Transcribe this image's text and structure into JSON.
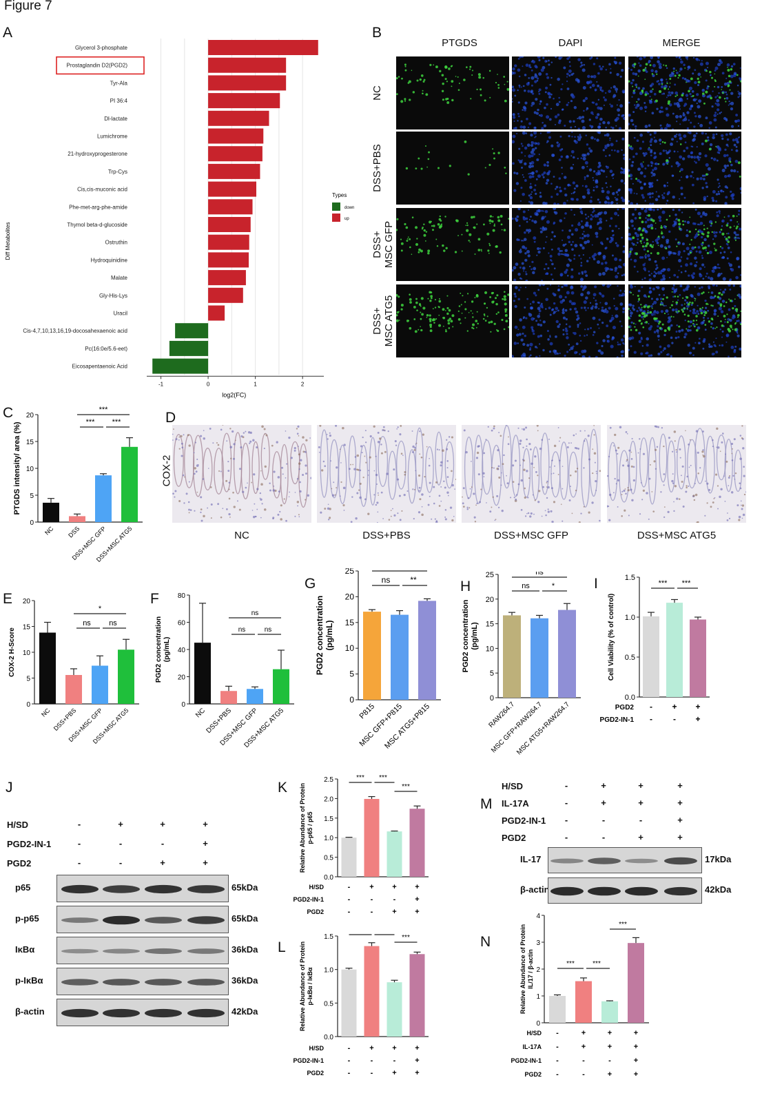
{
  "figure_title": "Figure 7",
  "panel_letters": [
    "A",
    "B",
    "C",
    "D",
    "E",
    "F",
    "G",
    "H",
    "I",
    "J",
    "K",
    "L",
    "M",
    "N"
  ],
  "colors": {
    "down": "#1e6b1e",
    "up": "#c8232c",
    "black": "#0c0c0c",
    "pink": "#f08080",
    "blue": "#4ea4f5",
    "green": "#1fbf3b",
    "orange": "#f5a53a",
    "blue2": "#5b9ef0",
    "lavender": "#8f8fd6",
    "khaki": "#bdb07a",
    "grey": "#d9d9d9",
    "mint": "#b8ecd8",
    "mauve": "#c07aa0"
  },
  "panelA": {
    "ylabel": "Diff Metabolites",
    "xlabel": "log2(FC)",
    "legend_title": "Types",
    "legend_items": [
      "down",
      "up"
    ],
    "highlighted": "Prostaglandin D2(PGD2)"
  },
  "panelB": {
    "columns": [
      "PTGDS",
      "DAPI",
      "MERGE"
    ],
    "rows": [
      "NC",
      "DSS+PBS",
      "DSS+\nMSC GFP",
      "DSS+\nMSC ATG5"
    ]
  },
  "panelD": {
    "stain": "COX-2",
    "labels": [
      "NC",
      "DSS+PBS",
      "DSS+MSC GFP",
      "DSS+MSC ATG5"
    ]
  },
  "panelJ": {
    "treatments": [
      {
        "name": "H/SD",
        "signs": [
          "-",
          "+",
          "+",
          "+"
        ]
      },
      {
        "name": "PGD2-IN-1",
        "signs": [
          "-",
          "-",
          "-",
          "+"
        ]
      },
      {
        "name": "PGD2",
        "signs": [
          "-",
          "-",
          "+",
          "+"
        ]
      }
    ],
    "bands": [
      {
        "name": "p65",
        "kda": "65kDa"
      },
      {
        "name": "p-p65",
        "kda": "65kDa"
      },
      {
        "name": "IκBα",
        "kda": "36kDa"
      },
      {
        "name": "p-IκBα",
        "kda": "36kDa"
      },
      {
        "name": "β-actin",
        "kda": "42kDa"
      }
    ]
  },
  "panelM": {
    "treatments": [
      {
        "name": "H/SD",
        "signs": [
          "-",
          "+",
          "+",
          "+"
        ]
      },
      {
        "name": "IL-17A",
        "signs": [
          "-",
          "+",
          "+",
          "+"
        ]
      },
      {
        "name": "PGD2-IN-1",
        "signs": [
          "-",
          "-",
          "-",
          "+"
        ]
      },
      {
        "name": "PGD2",
        "signs": [
          "-",
          "-",
          "+",
          "+"
        ]
      }
    ],
    "bands": [
      {
        "name": "IL-17",
        "kda": "17kDa"
      },
      {
        "name": "β-actin",
        "kda": "42kDa"
      }
    ]
  },
  "chart_data": [
    {
      "id": "A",
      "type": "bar",
      "orientation": "horizontal",
      "categories": [
        "Glycerol 3-phosphate",
        "Prostaglandin D2(PGD2)",
        "Tyr-Ala",
        "PI 36:4",
        "Dl-lactate",
        "Lumichrome",
        "21-hydroxyprogesterone",
        "Trp-Cys",
        "Cis,cis-muconic acid",
        "Phe-met-arg-phe-amide",
        "Thymol beta-d-glucoside",
        "Ostruthin",
        "Hydroquinidine",
        "Malate",
        "Gly-His-Lys",
        "Uracil",
        "Cis-4,7,10,13,16,19-docosahexaenoic acid",
        "Pc(16:0e/5.6-eet)",
        "Eicosapentaenoic Acid"
      ],
      "values": [
        2.33,
        1.65,
        1.65,
        1.52,
        1.29,
        1.17,
        1.15,
        1.1,
        1.02,
        0.94,
        0.9,
        0.87,
        0.86,
        0.8,
        0.74,
        0.35,
        -0.7,
        -0.82,
        -1.18
      ],
      "types": [
        "up",
        "up",
        "up",
        "up",
        "up",
        "up",
        "up",
        "up",
        "up",
        "up",
        "up",
        "up",
        "up",
        "up",
        "up",
        "up",
        "down",
        "down",
        "down"
      ],
      "xticks": [
        "-1",
        "0",
        "1",
        "2"
      ],
      "xlim": [
        -1.3,
        2.45
      ],
      "xlabel": "log2(FC)"
    },
    {
      "id": "C",
      "type": "bar",
      "categories": [
        "NC",
        "DSS",
        "DSS+MSC GFP",
        "DSS+MSC ATG5"
      ],
      "values": [
        3.6,
        1.1,
        8.7,
        14
      ],
      "errors": [
        0.8,
        0.4,
        0.3,
        1.7
      ],
      "ylabel": "PTGDS intensity/ area (%)",
      "ylim": [
        0,
        20
      ],
      "yticks": [
        "0",
        "5",
        "10",
        "15",
        "20"
      ],
      "brackets": [
        {
          "from": 1,
          "to": 3,
          "text": "***",
          "level": 0
        },
        {
          "from": 1,
          "to": 2,
          "text": "***",
          "level": 1
        },
        {
          "from": 2,
          "to": 3,
          "text": "***",
          "level": 1
        }
      ]
    },
    {
      "id": "E",
      "type": "bar",
      "categories": [
        "NC",
        "DSS+PBS",
        "DSS+MSC GFP",
        "DSS+MSC ATG5"
      ],
      "values": [
        13.8,
        5.6,
        7.4,
        10.5
      ],
      "errors": [
        2,
        1.2,
        1.9,
        2
      ],
      "ylabel": "COX-2 H-Score",
      "ylim": [
        0,
        20
      ],
      "yticks": [
        "0",
        "5",
        "10",
        "15",
        "20"
      ],
      "brackets": [
        {
          "from": 1,
          "to": 3,
          "text": "*",
          "level": 0
        },
        {
          "from": 1,
          "to": 2,
          "text": "ns",
          "level": 1
        },
        {
          "from": 2,
          "to": 3,
          "text": "ns",
          "level": 1
        }
      ]
    },
    {
      "id": "F",
      "type": "bar",
      "categories": [
        "NC",
        "DSS+PBS",
        "DSS+MSC GFP",
        "DSS+MSC ATG5"
      ],
      "values": [
        45,
        9.5,
        11,
        25.5
      ],
      "errors": [
        29,
        3.5,
        1.5,
        14
      ],
      "ylabel": "PGD2 concentration (pg/mL)",
      "ylim": [
        0,
        80
      ],
      "yticks": [
        "0",
        "20",
        "40",
        "60",
        "80"
      ],
      "brackets": [
        {
          "from": 1,
          "to": 3,
          "text": "ns",
          "level": 0
        },
        {
          "from": 1,
          "to": 2,
          "text": "ns",
          "level": 1
        },
        {
          "from": 2,
          "to": 3,
          "text": "ns",
          "level": 1
        }
      ]
    },
    {
      "id": "G",
      "type": "bar",
      "categories": [
        "P815",
        "MSC GFP+P815",
        "MSC ATG5+P815"
      ],
      "values": [
        17.1,
        16.5,
        19.2
      ],
      "errors": [
        0.4,
        0.8,
        0.4
      ],
      "ylabel": "PGD2 concentration (pg/mL)",
      "ylim": [
        0,
        25
      ],
      "yticks": [
        "0",
        "5",
        "10",
        "15",
        "20",
        "25"
      ],
      "brackets": [
        {
          "from": 0,
          "to": 2,
          "text": "**",
          "level": 0
        },
        {
          "from": 0,
          "to": 1,
          "text": "ns",
          "level": 1
        },
        {
          "from": 1,
          "to": 2,
          "text": "**",
          "level": 1
        }
      ]
    },
    {
      "id": "H",
      "type": "bar",
      "categories": [
        "RAW264.7",
        "MSC GFP+RAW264.7",
        "MSC ATG5+RAW264.7"
      ],
      "values": [
        16.7,
        16.1,
        17.8
      ],
      "errors": [
        0.6,
        0.6,
        1.3
      ],
      "ylabel": "PGD2 concentration (pg/mL)",
      "ylim": [
        0,
        25
      ],
      "yticks": [
        "0",
        "5",
        "10",
        "15",
        "20",
        "25"
      ],
      "brackets": [
        {
          "from": 0,
          "to": 2,
          "text": "ns",
          "level": 0
        },
        {
          "from": 0,
          "to": 1,
          "text": "ns",
          "level": 1
        },
        {
          "from": 1,
          "to": 2,
          "text": "*",
          "level": 1
        }
      ]
    },
    {
      "id": "I",
      "type": "bar",
      "categories": [
        "1",
        "2",
        "3"
      ],
      "values": [
        1.01,
        1.18,
        0.97
      ],
      "errors": [
        0.05,
        0.04,
        0.03
      ],
      "ylabel": "Cell Viability (% of control)",
      "ylim": [
        0,
        1.5
      ],
      "yticks": [
        "0.0",
        "0.5",
        "1.0",
        "1.5"
      ],
      "brackets": [
        {
          "from": 0,
          "to": 1,
          "text": "***",
          "level": 1
        },
        {
          "from": 1,
          "to": 2,
          "text": "***",
          "level": 1
        }
      ],
      "conditions": [
        {
          "name": "PGD2",
          "signs": [
            "-",
            "+",
            "+"
          ]
        },
        {
          "name": "PGD2-IN-1",
          "signs": [
            "-",
            "-",
            "+"
          ]
        }
      ]
    },
    {
      "id": "K",
      "type": "bar",
      "categories": [
        "1",
        "2",
        "3",
        "4"
      ],
      "values": [
        1.0,
        1.99,
        1.16,
        1.74
      ],
      "errors": [
        0.01,
        0.06,
        0.01,
        0.07
      ],
      "ylabel": "Relative Abundance of Protein p-p65 / p65",
      "ylim": [
        0,
        2.5
      ],
      "yticks": [
        "0.0",
        "0.5",
        "1.0",
        "1.5",
        "2.0",
        "2.5"
      ],
      "brackets": [
        {
          "from": 0,
          "to": 1,
          "text": "***",
          "level": 1
        },
        {
          "from": 1,
          "to": 2,
          "text": "***",
          "level": 1
        },
        {
          "from": 2,
          "to": 3,
          "text": "***",
          "level": 2
        }
      ],
      "conditions": [
        {
          "name": "H/SD",
          "signs": [
            "-",
            "+",
            "+",
            "+"
          ]
        },
        {
          "name": "PGD2-IN-1",
          "signs": [
            "-",
            "-",
            "-",
            "+"
          ]
        },
        {
          "name": "PGD2",
          "signs": [
            "-",
            "-",
            "+",
            "+"
          ]
        }
      ]
    },
    {
      "id": "L",
      "type": "bar",
      "categories": [
        "1",
        "2",
        "3",
        "4"
      ],
      "values": [
        1.0,
        1.35,
        0.81,
        1.23
      ],
      "errors": [
        0.02,
        0.05,
        0.03,
        0.03
      ],
      "ylabel": "Relative Abundance of Protein p-IκBα / IκBα",
      "ylim": [
        0,
        1.5
      ],
      "yticks": [
        "0.0",
        "0.5",
        "1.0",
        "1.5"
      ],
      "brackets": [
        {
          "from": 0,
          "to": 1,
          "text": "***",
          "level": 1
        },
        {
          "from": 1,
          "to": 2,
          "text": "***",
          "level": 1
        },
        {
          "from": 2,
          "to": 3,
          "text": "***",
          "level": 2
        }
      ],
      "conditions": [
        {
          "name": "H/SD",
          "signs": [
            "-",
            "+",
            "+",
            "+"
          ]
        },
        {
          "name": "PGD2-IN-1",
          "signs": [
            "-",
            "-",
            "-",
            "+"
          ]
        },
        {
          "name": "PGD2",
          "signs": [
            "-",
            "-",
            "+",
            "+"
          ]
        }
      ]
    },
    {
      "id": "N",
      "type": "bar",
      "categories": [
        "1",
        "2",
        "3",
        "4"
      ],
      "values": [
        1.0,
        1.55,
        0.8,
        2.97
      ],
      "errors": [
        0.04,
        0.12,
        0.02,
        0.2
      ],
      "ylabel": "Relative Abundance of Protein IL/17 / β-actin",
      "ylim": [
        0,
        4
      ],
      "yticks": [
        "0",
        "1",
        "2",
        "3",
        "4"
      ],
      "brackets": [
        {
          "from": 0,
          "to": 1,
          "text": "***",
          "level": 1
        },
        {
          "from": 1,
          "to": 2,
          "text": "***",
          "level": 1
        },
        {
          "from": 2,
          "to": 3,
          "text": "***",
          "level": 3
        }
      ],
      "conditions": [
        {
          "name": "H/SD",
          "signs": [
            "-",
            "+",
            "+",
            "+"
          ]
        },
        {
          "name": "IL-17A",
          "signs": [
            "-",
            "+",
            "+",
            "+"
          ]
        },
        {
          "name": "PGD2-IN-1",
          "signs": [
            "-",
            "-",
            "-",
            "+"
          ]
        },
        {
          "name": "PGD2",
          "signs": [
            "-",
            "-",
            "+",
            "+"
          ]
        }
      ]
    }
  ]
}
